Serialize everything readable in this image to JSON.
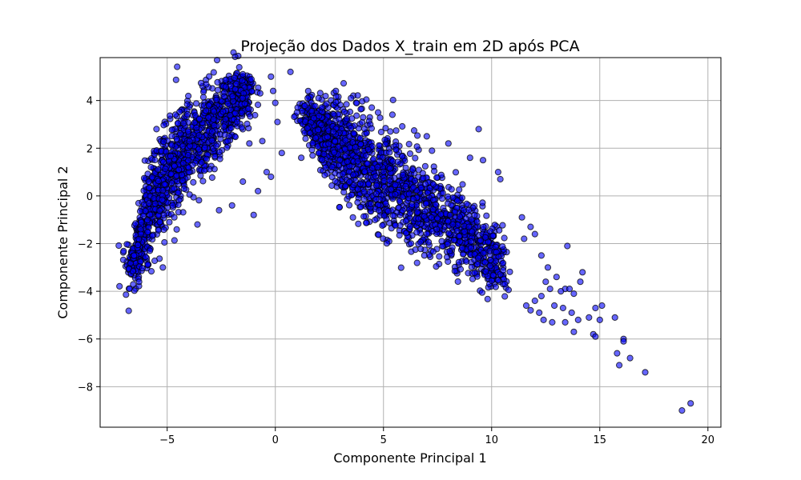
{
  "chart_data": {
    "type": "scatter",
    "title": "Projeção dos Dados X_train em 2D após PCA",
    "xlabel": "Componente Principal 1",
    "ylabel": "Componente Principal 2",
    "xlim": [
      -8.1,
      20.6
    ],
    "ylim": [
      -9.7,
      5.8
    ],
    "xticks": [
      -5,
      0,
      5,
      10,
      15,
      20
    ],
    "yticks": [
      -8,
      -6,
      -4,
      -2,
      0,
      2,
      4
    ],
    "xtick_labels": [
      "−5",
      "0",
      "5",
      "10",
      "15",
      "20"
    ],
    "ytick_labels": [
      "−8",
      "−6",
      "−4",
      "−2",
      "0",
      "2",
      "4"
    ],
    "grid": true,
    "marker_color": "#0000ff",
    "marker_edge_color": "#000000",
    "clusters": [
      {
        "name_hint": "left",
        "x": [
          -6.6,
          -6.0,
          -5.0,
          -4.0,
          -3.0,
          -2.0,
          -1.2
        ],
        "y_center": [
          -2.9,
          -1.0,
          0.8,
          2.0,
          3.0,
          3.8,
          4.4
        ],
        "y_spread": [
          0.6,
          1.2,
          1.3,
          1.2,
          1.0,
          0.8,
          0.6
        ],
        "n": 1300
      },
      {
        "name_hint": "right",
        "x": [
          1.5,
          3.0,
          5.0,
          7.0,
          9.0,
          10.5
        ],
        "y_center": [
          3.2,
          2.0,
          0.7,
          -0.5,
          -1.8,
          -2.8
        ],
        "y_spread": [
          0.5,
          1.1,
          1.3,
          1.2,
          0.9,
          0.8
        ],
        "n": 1700
      }
    ],
    "points": [
      [
        0.7,
        5.2
      ],
      [
        -0.2,
        5.0
      ],
      [
        -1.5,
        5.1
      ],
      [
        -1.8,
        4.7
      ],
      [
        -0.7,
        4.3
      ],
      [
        -0.1,
        4.4
      ],
      [
        0.0,
        3.9
      ],
      [
        0.1,
        3.1
      ],
      [
        -0.6,
        2.3
      ],
      [
        -0.4,
        1.0
      ],
      [
        -0.2,
        0.8
      ],
      [
        -0.8,
        0.2
      ],
      [
        -1.0,
        -0.8
      ],
      [
        -1.5,
        0.6
      ],
      [
        -2.6,
        -0.6
      ],
      [
        -3.6,
        -1.2
      ],
      [
        -2.0,
        -0.4
      ],
      [
        -5.2,
        -3.0
      ],
      [
        -6.3,
        -3.6
      ],
      [
        -5.8,
        -2.3
      ],
      [
        -1.2,
        2.2
      ],
      [
        0.3,
        1.8
      ],
      [
        1.0,
        3.5
      ],
      [
        1.4,
        2.4
      ],
      [
        1.2,
        1.6
      ],
      [
        2.0,
        4.1
      ],
      [
        1.5,
        4.1
      ],
      [
        2.8,
        4.4
      ],
      [
        3.5,
        4.1
      ],
      [
        7.0,
        2.5
      ],
      [
        8.0,
        2.2
      ],
      [
        9.0,
        1.6
      ],
      [
        9.6,
        1.5
      ],
      [
        9.4,
        2.8
      ],
      [
        10.3,
        1.0
      ],
      [
        10.4,
        0.7
      ],
      [
        11.5,
        -1.8
      ],
      [
        12.0,
        -1.6
      ],
      [
        11.4,
        -0.9
      ],
      [
        11.8,
        -1.3
      ],
      [
        12.3,
        -2.5
      ],
      [
        12.6,
        -3.0
      ],
      [
        13.5,
        -2.1
      ],
      [
        13.0,
        -3.4
      ],
      [
        12.5,
        -3.6
      ],
      [
        12.7,
        -3.9
      ],
      [
        13.4,
        -3.9
      ],
      [
        13.6,
        -3.9
      ],
      [
        13.2,
        -4.0
      ],
      [
        13.8,
        -4.1
      ],
      [
        14.2,
        -3.2
      ],
      [
        14.1,
        -3.6
      ],
      [
        12.3,
        -4.2
      ],
      [
        12.0,
        -4.4
      ],
      [
        12.2,
        -4.9
      ],
      [
        12.4,
        -5.2
      ],
      [
        11.6,
        -4.6
      ],
      [
        11.8,
        -4.8
      ],
      [
        12.9,
        -4.6
      ],
      [
        13.3,
        -4.7
      ],
      [
        13.7,
        -4.9
      ],
      [
        14.0,
        -5.2
      ],
      [
        13.4,
        -5.3
      ],
      [
        12.8,
        -5.3
      ],
      [
        13.8,
        -5.7
      ],
      [
        14.5,
        -5.1
      ],
      [
        14.7,
        -5.8
      ],
      [
        14.8,
        -5.9
      ],
      [
        15.0,
        -5.2
      ],
      [
        14.8,
        -4.7
      ],
      [
        15.1,
        -4.6
      ],
      [
        15.7,
        -5.1
      ],
      [
        15.8,
        -6.6
      ],
      [
        15.9,
        -7.1
      ],
      [
        16.1,
        -6.0
      ],
      [
        16.1,
        -6.1
      ],
      [
        16.4,
        -6.8
      ],
      [
        17.1,
        -7.4
      ],
      [
        18.8,
        -9.0
      ],
      [
        19.2,
        -8.7
      ]
    ]
  }
}
